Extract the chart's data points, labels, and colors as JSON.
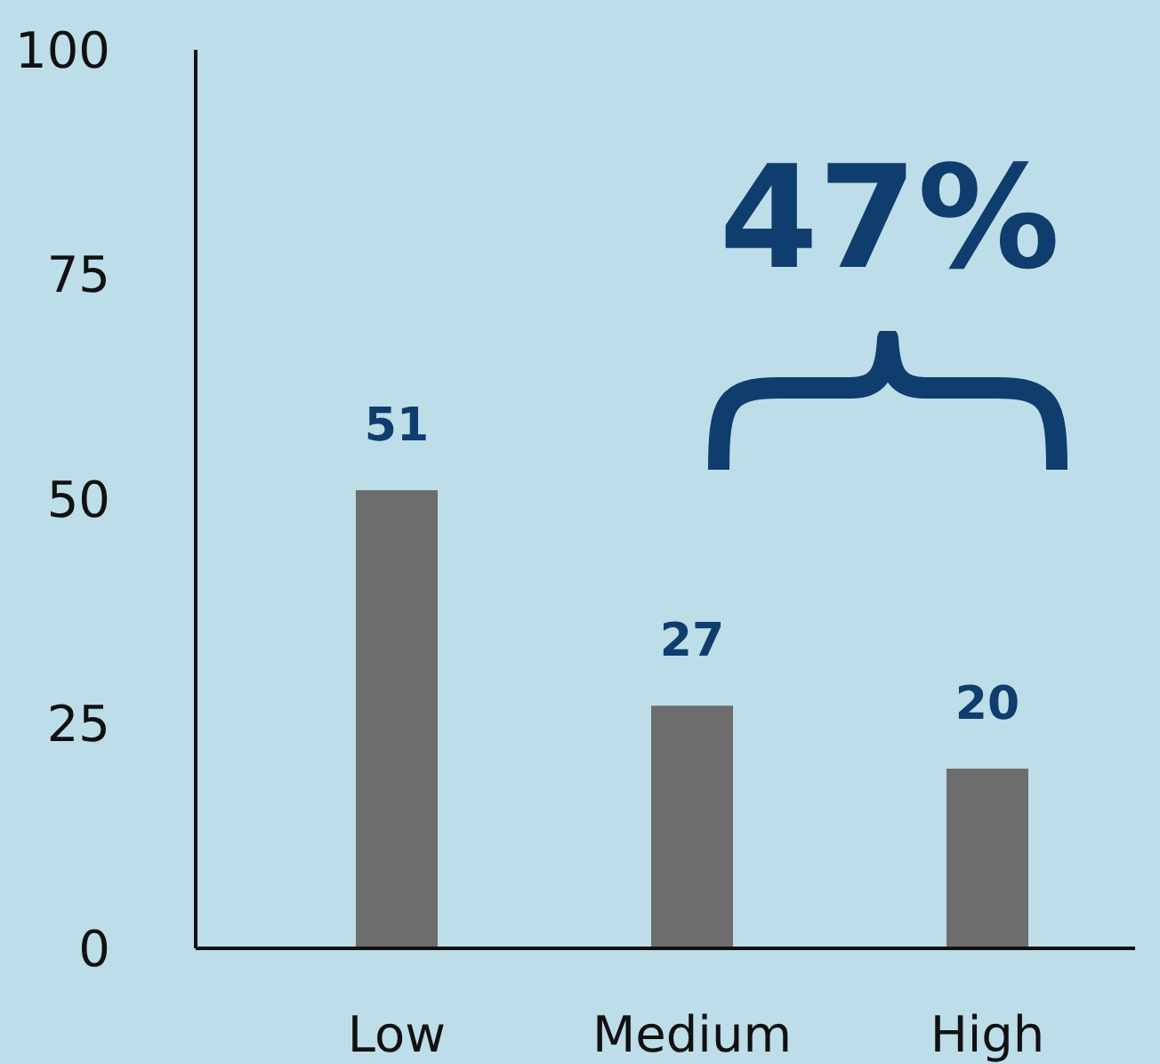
{
  "chart_data": {
    "type": "bar",
    "categories": [
      "Low",
      "Medium",
      "High"
    ],
    "values": [
      51,
      27,
      20
    ],
    "color": "#6d6d6d",
    "ylim": [
      0,
      100
    ],
    "yticks": [
      0,
      25,
      50,
      75,
      100
    ],
    "data_labels": true,
    "annotations": [
      "47%"
    ],
    "grid": false,
    "legend": false
  }
}
